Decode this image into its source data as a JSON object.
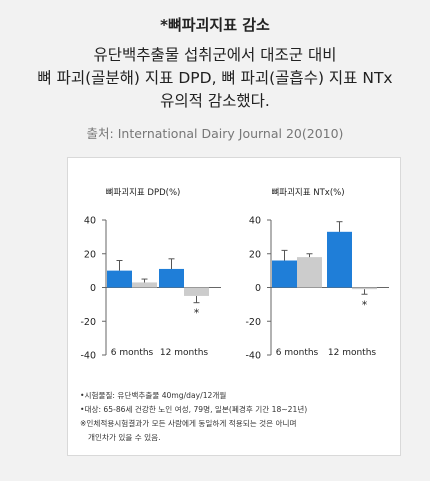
{
  "header": {
    "title": "*뼈파괴지표 감소",
    "summary_lines": [
      "유단백추출물 섭취군에서 대조군 대비",
      "뼈 파괴(골분해) 지표 DPD, 뼈 파괴(골흡수) 지표 NTx",
      "유의적 감소했다."
    ],
    "source": "출처: International Dairy Journal 20(2010)"
  },
  "colors": {
    "treatment": "#1f7ed8",
    "control": "#cccccc",
    "axis": "#666666",
    "background": "#f2f2f2"
  },
  "chart_data": [
    {
      "type": "bar",
      "title": "뼈파괴지표 DPD(%)",
      "categories": [
        "6 months",
        "12 months"
      ],
      "ylim": [
        -40,
        40
      ],
      "yticks": [
        40,
        20,
        0,
        -20,
        -40
      ],
      "series": [
        {
          "color": "#1f7ed8",
          "values": [
            10,
            11
          ],
          "error": [
            6,
            6
          ]
        },
        {
          "color": "#cccccc",
          "values": [
            3,
            -5
          ],
          "error": [
            2,
            4
          ]
        }
      ],
      "annotations": [
        {
          "category": "12 months",
          "series_index": 1,
          "text": "*"
        }
      ]
    },
    {
      "type": "bar",
      "title": "뼈파괴지표 NTx(%)",
      "categories": [
        "6 months",
        "12 months"
      ],
      "ylim": [
        -40,
        40
      ],
      "yticks": [
        40,
        20,
        0,
        -20,
        -40
      ],
      "series": [
        {
          "color": "#1f7ed8",
          "values": [
            16,
            33
          ],
          "error": [
            6,
            6
          ]
        },
        {
          "color": "#cccccc",
          "values": [
            18,
            -1
          ],
          "error": [
            2,
            3
          ]
        }
      ],
      "annotations": [
        {
          "category": "12 months",
          "series_index": 1,
          "text": "*"
        }
      ]
    }
  ],
  "notes": [
    "•시험물질: 유단백추출물 40mg/day/12개월",
    "•대상: 65-86세 건강한 노인 여성, 79명, 일본(폐경후 기간 18~21년)",
    "※인체적용시험결과가 모든 사람에게 동일하게 적용되는 것은 아니며",
    "개인차가 있을 수 있음."
  ]
}
